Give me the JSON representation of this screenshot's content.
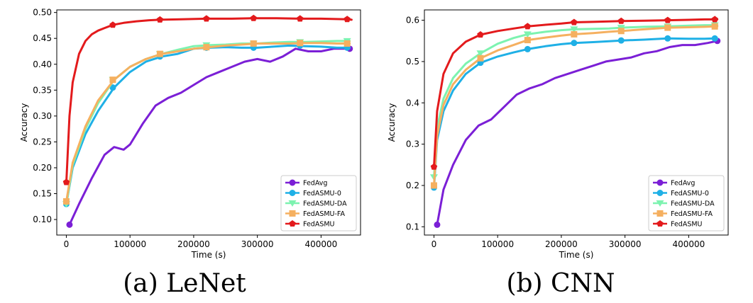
{
  "chart_data": [
    {
      "type": "line",
      "panel_caption": "(a) LeNet",
      "xlabel": "Time (s)",
      "ylabel": "Accuracy",
      "xlim": [
        -15000,
        462000
      ],
      "ylim": [
        0.07,
        0.505
      ],
      "xticks": [
        0,
        100000,
        200000,
        300000,
        400000
      ],
      "xtick_labels": [
        "0",
        "100000",
        "200000",
        "300000",
        "400000"
      ],
      "yticks": [
        0.1,
        0.15,
        0.2,
        0.25,
        0.3,
        0.35,
        0.4,
        0.45,
        0.5
      ],
      "ytick_labels": [
        "0.10",
        "0.15",
        "0.20",
        "0.25",
        "0.30",
        "0.35",
        "0.40",
        "0.45",
        "0.50"
      ],
      "legend_position": "lower-right",
      "series": [
        {
          "name": "FedAvg",
          "color": "#7b1fd6",
          "marker": "circle",
          "x": [
            5000,
            20000,
            40000,
            60000,
            75000,
            90000,
            100000,
            120000,
            140000,
            160000,
            180000,
            200000,
            220000,
            240000,
            260000,
            280000,
            300000,
            320000,
            340000,
            360000,
            380000,
            400000,
            420000,
            445000
          ],
          "y": [
            0.09,
            0.13,
            0.18,
            0.225,
            0.24,
            0.235,
            0.245,
            0.285,
            0.32,
            0.335,
            0.345,
            0.36,
            0.375,
            0.385,
            0.395,
            0.405,
            0.41,
            0.405,
            0.415,
            0.43,
            0.425,
            0.425,
            0.43,
            0.43
          ],
          "marker_x": [
            5000,
            445000
          ],
          "marker_y": [
            0.09,
            0.43
          ]
        },
        {
          "name": "FedASMU-0",
          "color": "#1fb0e6",
          "marker": "circle",
          "x": [
            0,
            10000,
            30000,
            50000,
            75000,
            100000,
            125000,
            150000,
            175000,
            200000,
            225000,
            250000,
            275000,
            300000,
            325000,
            350000,
            375000,
            400000,
            425000,
            445000
          ],
          "y": [
            0.13,
            0.2,
            0.265,
            0.31,
            0.355,
            0.385,
            0.405,
            0.415,
            0.42,
            0.43,
            0.432,
            0.433,
            0.432,
            0.432,
            0.434,
            0.436,
            0.435,
            0.434,
            0.432,
            0.432
          ],
          "marker_x": [
            0,
            73000,
            147000,
            220000,
            294000,
            367000,
            441000
          ],
          "marker_y": [
            0.13,
            0.355,
            0.415,
            0.432,
            0.432,
            0.436,
            0.432
          ]
        },
        {
          "name": "FedASMU-DA",
          "color": "#7df3b0",
          "marker": "triangle-down",
          "x": [
            0,
            10000,
            30000,
            50000,
            75000,
            100000,
            125000,
            150000,
            175000,
            200000,
            225000,
            250000,
            275000,
            300000,
            325000,
            350000,
            375000,
            400000,
            425000,
            445000
          ],
          "y": [
            0.13,
            0.205,
            0.275,
            0.325,
            0.37,
            0.395,
            0.41,
            0.42,
            0.428,
            0.435,
            0.437,
            0.438,
            0.44,
            0.44,
            0.442,
            0.443,
            0.443,
            0.444,
            0.445,
            0.445
          ],
          "marker_x": [
            0,
            73000,
            147000,
            220000,
            294000,
            367000,
            441000
          ],
          "marker_y": [
            0.13,
            0.37,
            0.42,
            0.437,
            0.44,
            0.443,
            0.445
          ]
        },
        {
          "name": "FedASMU-FA",
          "color": "#f5b060",
          "marker": "square",
          "x": [
            0,
            10000,
            30000,
            50000,
            75000,
            100000,
            125000,
            150000,
            175000,
            200000,
            225000,
            250000,
            275000,
            300000,
            325000,
            350000,
            375000,
            400000,
            425000,
            445000
          ],
          "y": [
            0.135,
            0.21,
            0.28,
            0.33,
            0.37,
            0.395,
            0.41,
            0.42,
            0.425,
            0.43,
            0.433,
            0.436,
            0.438,
            0.44,
            0.44,
            0.44,
            0.441,
            0.441,
            0.44,
            0.44
          ],
          "marker_x": [
            0,
            73000,
            147000,
            220000,
            294000,
            367000,
            441000
          ],
          "marker_y": [
            0.135,
            0.37,
            0.42,
            0.433,
            0.44,
            0.441,
            0.44
          ]
        },
        {
          "name": "FedASMU",
          "color": "#e31a1c",
          "marker": "pentagon",
          "x": [
            0,
            5000,
            10000,
            20000,
            30000,
            40000,
            50000,
            60000,
            73000,
            90000,
            110000,
            130000,
            147000,
            180000,
            220000,
            260000,
            294000,
            330000,
            367000,
            400000,
            441000,
            448000
          ],
          "y": [
            0.172,
            0.3,
            0.365,
            0.42,
            0.445,
            0.458,
            0.465,
            0.47,
            0.476,
            0.48,
            0.483,
            0.485,
            0.486,
            0.487,
            0.488,
            0.488,
            0.489,
            0.489,
            0.488,
            0.488,
            0.487,
            0.486
          ],
          "marker_x": [
            0,
            73000,
            147000,
            220000,
            294000,
            367000,
            441000
          ],
          "marker_y": [
            0.172,
            0.476,
            0.486,
            0.488,
            0.489,
            0.488,
            0.487
          ]
        }
      ]
    },
    {
      "type": "line",
      "panel_caption": "(b) CNN",
      "xlabel": "Time (s)",
      "ylabel": "Accuracy",
      "xlim": [
        -15000,
        462000
      ],
      "ylim": [
        0.08,
        0.625
      ],
      "xticks": [
        0,
        100000,
        200000,
        300000,
        400000
      ],
      "xtick_labels": [
        "0",
        "100000",
        "200000",
        "300000",
        "400000"
      ],
      "yticks": [
        0.1,
        0.2,
        0.3,
        0.4,
        0.5,
        0.6
      ],
      "ytick_labels": [
        "0.1",
        "0.2",
        "0.3",
        "0.4",
        "0.5",
        "0.6"
      ],
      "legend_position": "lower-right",
      "series": [
        {
          "name": "FedAvg",
          "color": "#7b1fd6",
          "marker": "circle",
          "x": [
            5000,
            15000,
            30000,
            50000,
            70000,
            90000,
            110000,
            130000,
            150000,
            170000,
            190000,
            210000,
            230000,
            250000,
            270000,
            290000,
            310000,
            330000,
            350000,
            370000,
            390000,
            410000,
            430000,
            445000
          ],
          "y": [
            0.105,
            0.19,
            0.25,
            0.31,
            0.345,
            0.36,
            0.39,
            0.42,
            0.435,
            0.445,
            0.46,
            0.47,
            0.48,
            0.49,
            0.5,
            0.505,
            0.51,
            0.52,
            0.525,
            0.535,
            0.54,
            0.54,
            0.545,
            0.55
          ],
          "marker_x": [
            5000,
            445000
          ],
          "marker_y": [
            0.105,
            0.55
          ]
        },
        {
          "name": "FedASMU-0",
          "color": "#1fb0e6",
          "marker": "circle",
          "x": [
            0,
            5000,
            15000,
            30000,
            50000,
            73000,
            100000,
            125000,
            147000,
            175000,
            200000,
            220000,
            250000,
            275000,
            294000,
            330000,
            367000,
            400000,
            425000,
            441000,
            445000
          ],
          "y": [
            0.195,
            0.31,
            0.38,
            0.43,
            0.47,
            0.497,
            0.512,
            0.522,
            0.53,
            0.537,
            0.542,
            0.545,
            0.547,
            0.549,
            0.551,
            0.553,
            0.556,
            0.555,
            0.555,
            0.556,
            0.555
          ],
          "marker_x": [
            0,
            73000,
            147000,
            220000,
            294000,
            367000,
            441000
          ],
          "marker_y": [
            0.195,
            0.497,
            0.53,
            0.545,
            0.551,
            0.556,
            0.556
          ]
        },
        {
          "name": "FedASMU-DA",
          "color": "#7df3b0",
          "marker": "triangle-down",
          "x": [
            0,
            5000,
            15000,
            30000,
            50000,
            73000,
            100000,
            125000,
            147000,
            175000,
            200000,
            220000,
            250000,
            275000,
            294000,
            330000,
            367000,
            400000,
            425000,
            441000,
            445000
          ],
          "y": [
            0.22,
            0.34,
            0.41,
            0.46,
            0.495,
            0.52,
            0.543,
            0.557,
            0.566,
            0.572,
            0.576,
            0.578,
            0.579,
            0.58,
            0.582,
            0.584,
            0.585,
            0.587,
            0.588,
            0.588,
            0.588
          ],
          "marker_x": [
            0,
            73000,
            147000,
            220000,
            294000,
            367000,
            441000
          ],
          "marker_y": [
            0.22,
            0.52,
            0.566,
            0.578,
            0.582,
            0.585,
            0.588
          ]
        },
        {
          "name": "FedASMU-FA",
          "color": "#f5b060",
          "marker": "square",
          "x": [
            0,
            5000,
            15000,
            30000,
            50000,
            73000,
            100000,
            125000,
            147000,
            175000,
            200000,
            220000,
            250000,
            275000,
            294000,
            330000,
            367000,
            400000,
            425000,
            441000,
            445000
          ],
          "y": [
            0.2,
            0.32,
            0.395,
            0.445,
            0.48,
            0.508,
            0.527,
            0.54,
            0.552,
            0.558,
            0.563,
            0.566,
            0.569,
            0.572,
            0.574,
            0.578,
            0.582,
            0.583,
            0.584,
            0.585,
            0.585
          ],
          "marker_x": [
            0,
            73000,
            147000,
            220000,
            294000,
            367000,
            441000
          ],
          "marker_y": [
            0.2,
            0.508,
            0.552,
            0.566,
            0.574,
            0.582,
            0.585
          ]
        },
        {
          "name": "FedASMU",
          "color": "#e31a1c",
          "marker": "pentagon",
          "x": [
            0,
            5000,
            15000,
            30000,
            50000,
            73000,
            100000,
            125000,
            147000,
            175000,
            200000,
            220000,
            250000,
            275000,
            294000,
            330000,
            367000,
            400000,
            425000,
            441000,
            445000
          ],
          "y": [
            0.245,
            0.38,
            0.47,
            0.52,
            0.548,
            0.565,
            0.574,
            0.58,
            0.585,
            0.589,
            0.592,
            0.595,
            0.596,
            0.597,
            0.598,
            0.599,
            0.6,
            0.601,
            0.602,
            0.602,
            0.602
          ],
          "marker_x": [
            0,
            73000,
            147000,
            220000,
            294000,
            367000,
            441000
          ],
          "marker_y": [
            0.245,
            0.565,
            0.585,
            0.595,
            0.598,
            0.6,
            0.602
          ]
        }
      ]
    }
  ]
}
